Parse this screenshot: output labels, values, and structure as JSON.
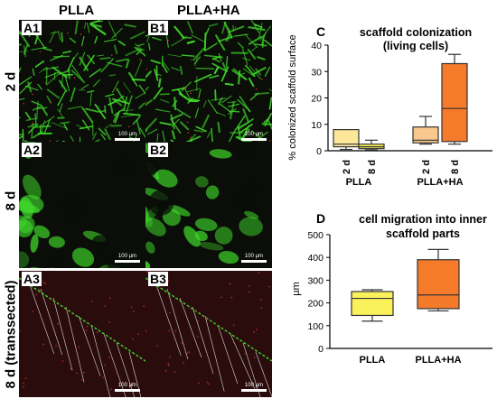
{
  "micrographs": {
    "column_headers": [
      "PLLA",
      "PLLA+HA"
    ],
    "row_headers": [
      "2 d",
      "8 d",
      "8 d (transsected)"
    ],
    "panel_labels": [
      "A1",
      "B1",
      "A2",
      "B2",
      "A3",
      "B3"
    ],
    "scale_bar_text": "100 µm",
    "colors": {
      "background": "#0a0d08",
      "cells": "#3fd62a",
      "membrane_red": "#c23030",
      "section_red": "#2a0c0c"
    }
  },
  "chart_data": [
    {
      "panel_letter": "C",
      "type": "box",
      "title_line1": "scaffold colonization",
      "title_line2": "(living cells)",
      "ylabel": "% colonized scaffold surface",
      "ylim": [
        0,
        40
      ],
      "yticks": [
        0,
        10,
        20,
        30,
        40
      ],
      "groups": [
        {
          "label": "PLLA",
          "boxes": [
            "2 d",
            "8 d"
          ]
        },
        {
          "label": "PLLA+HA",
          "boxes": [
            "2 d",
            "8 d"
          ]
        }
      ],
      "boxes": [
        {
          "group": "PLLA",
          "time": "2 d",
          "min": 0.5,
          "q1": 1.5,
          "median": 2.5,
          "q3": 8,
          "max": 8,
          "color": "#fde79a"
        },
        {
          "group": "PLLA",
          "time": "8 d",
          "min": 0.3,
          "q1": 0.8,
          "median": 1.5,
          "q3": 2.5,
          "max": 4,
          "color": "#fbf15a"
        },
        {
          "group": "PLLA+HA",
          "time": "2 d",
          "min": 2.5,
          "q1": 3,
          "median": 4,
          "q3": 9,
          "max": 13,
          "color": "#f9c88e"
        },
        {
          "group": "PLLA+HA",
          "time": "8 d",
          "min": 2.5,
          "q1": 3.5,
          "median": 16,
          "q3": 33,
          "max": 36.5,
          "color": "#f57a2a"
        }
      ]
    },
    {
      "panel_letter": "D",
      "type": "box",
      "title_line1": "cell migration into inner",
      "title_line2": "scaffold parts",
      "ylabel": "µm",
      "ylim": [
        0,
        500
      ],
      "yticks": [
        0,
        100,
        200,
        300,
        400,
        500
      ],
      "categories": [
        "PLLA",
        "PLLA+HA"
      ],
      "boxes": [
        {
          "label": "PLLA",
          "min": 120,
          "q1": 145,
          "median": 220,
          "q3": 250,
          "max": 258,
          "color": "#fbf15a"
        },
        {
          "label": "PLLA+HA",
          "min": 165,
          "q1": 175,
          "median": 235,
          "q3": 390,
          "max": 435,
          "color": "#f57a2a"
        }
      ]
    }
  ]
}
